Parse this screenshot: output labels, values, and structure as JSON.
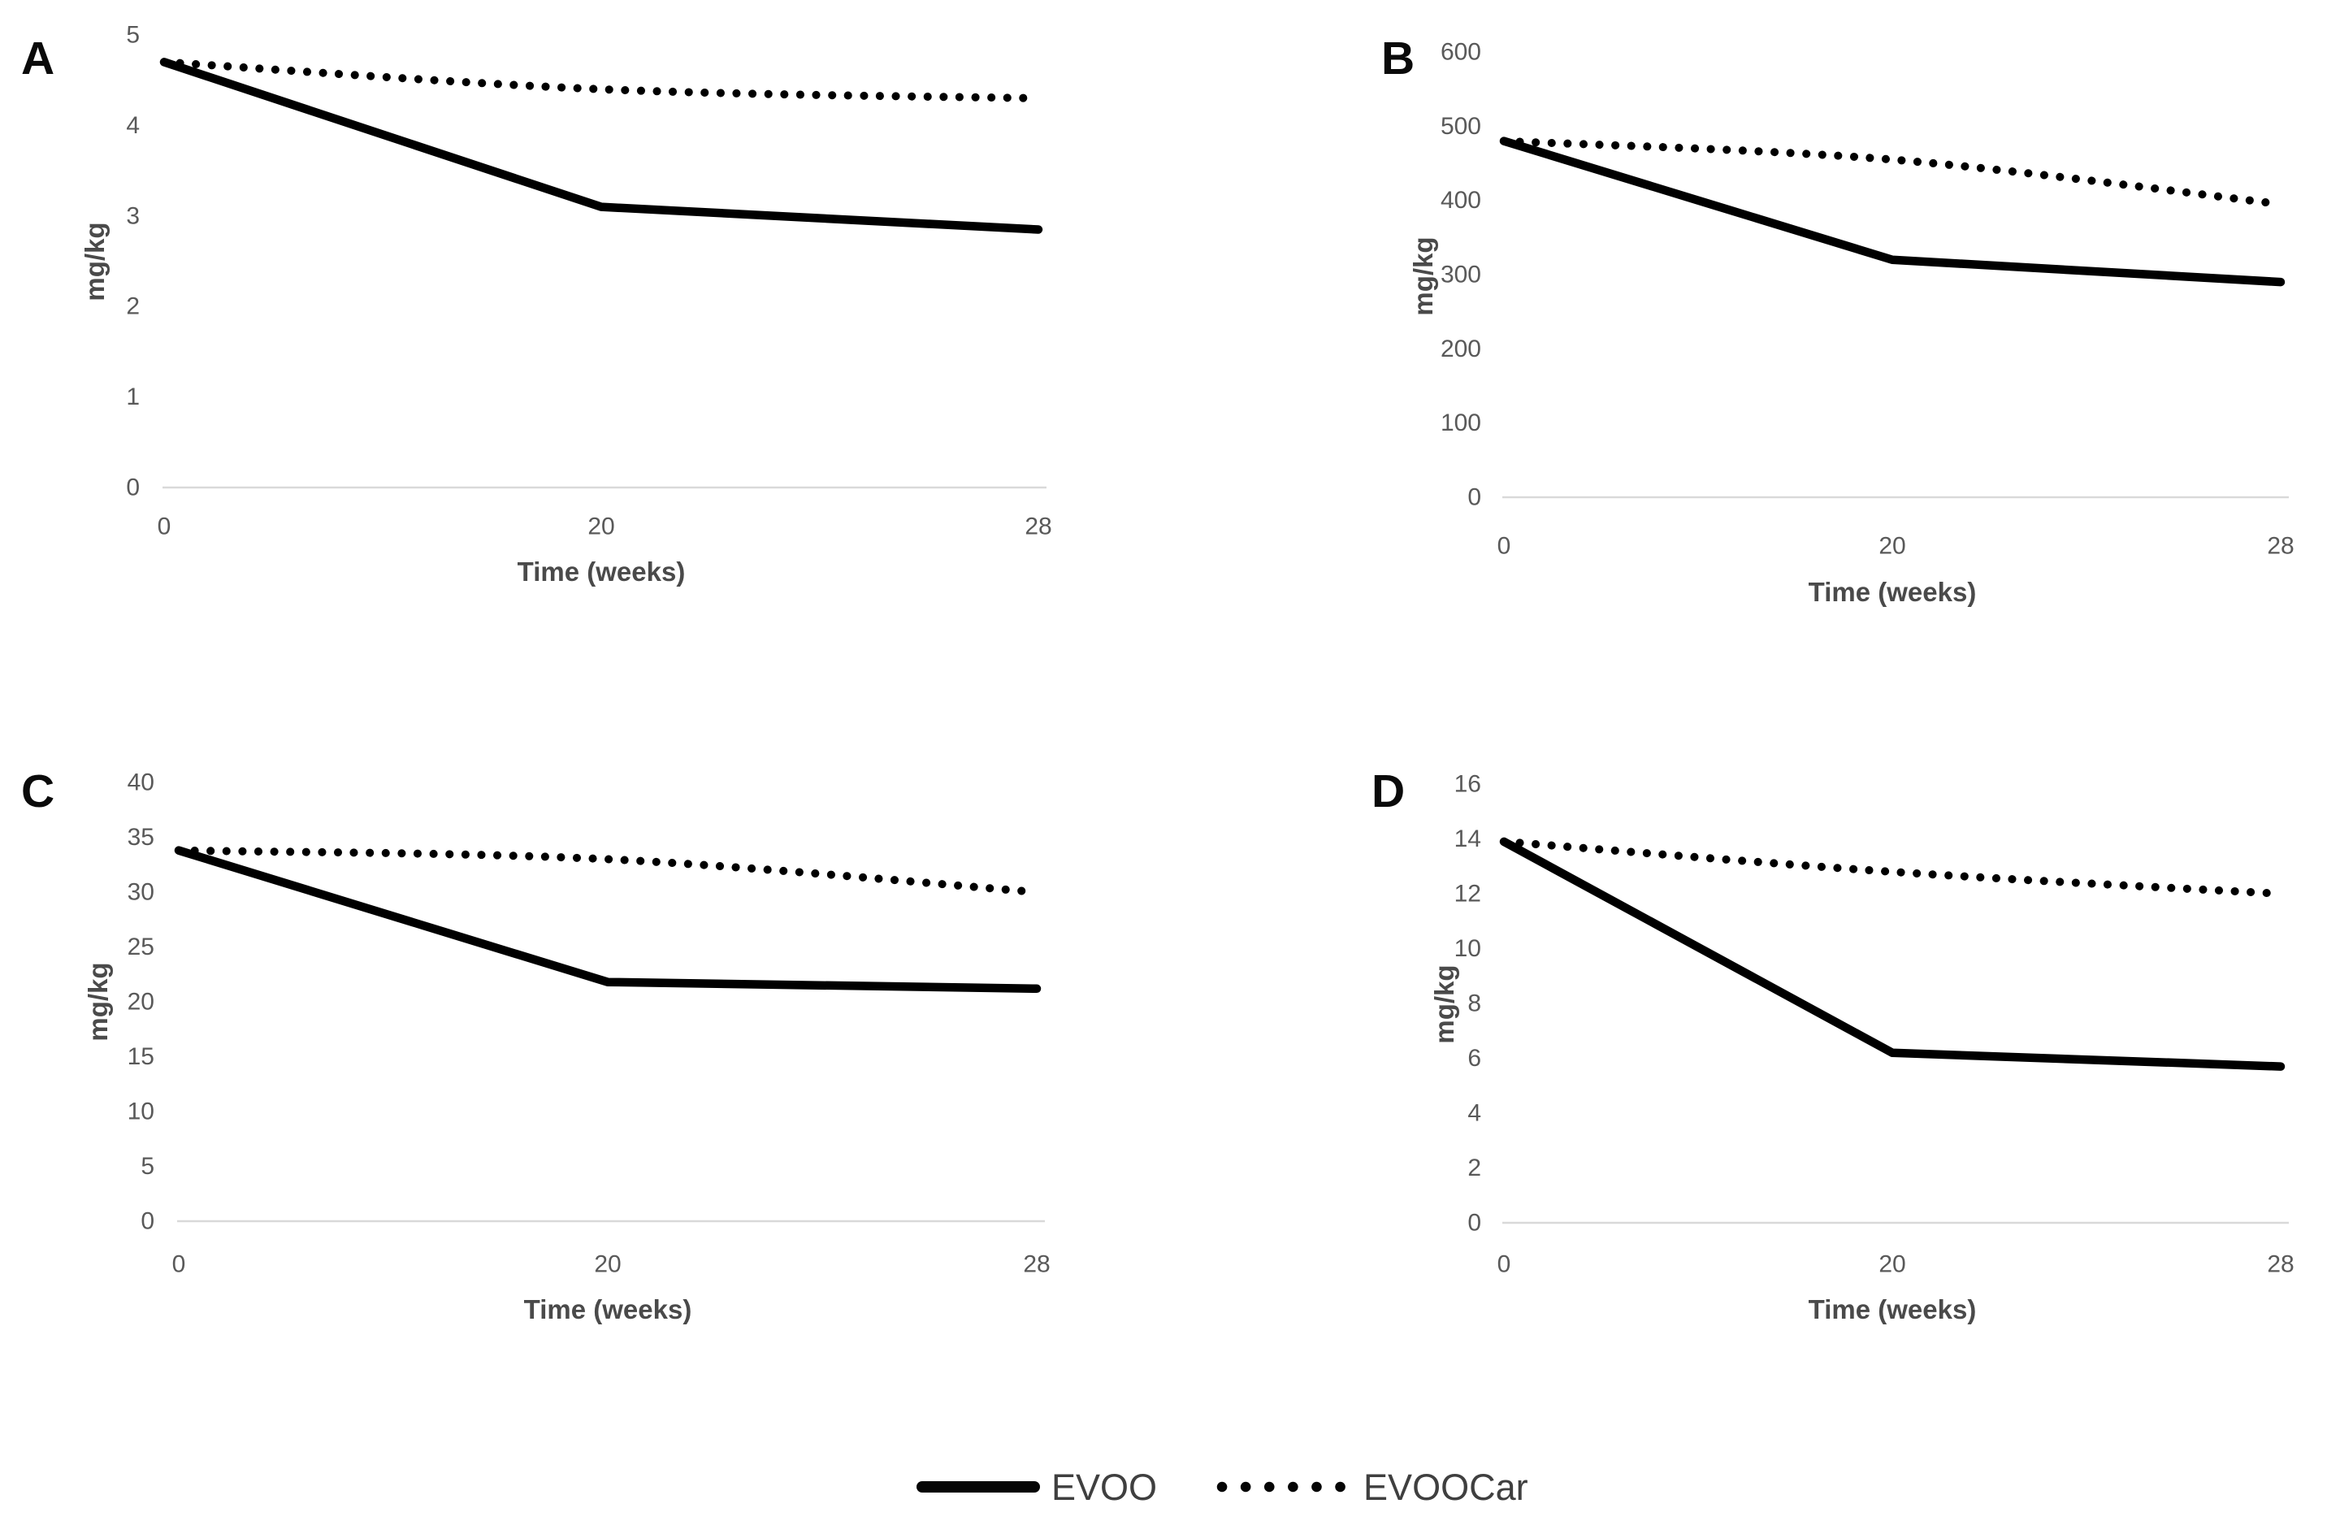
{
  "page": {
    "background": "#ffffff"
  },
  "colors": {
    "line": "#000000",
    "tick_label": "#595959",
    "axis_title": "#4a4a4a",
    "axis_line": "#d9d9d9",
    "panel_letter": "#0a0a0a",
    "legend_text": "#3f3f3f"
  },
  "legend": {
    "position": "bottom-center",
    "items": [
      {
        "label": "EVOO",
        "style": "solid",
        "swatch": "thick-solid-line"
      },
      {
        "label": "EVOOCar",
        "style": "dotted",
        "swatch": "round-dotted-line"
      }
    ]
  },
  "chart_data": [
    {
      "panel_label": "A",
      "type": "line",
      "x": [
        0,
        20,
        28
      ],
      "x_tick_labels": [
        "0",
        "20",
        "28"
      ],
      "xlabel": "Time (weeks)",
      "ylabel": "mg/kg",
      "ylim": [
        0,
        5
      ],
      "ytick_interval": 1,
      "yticks": [
        5,
        4,
        3,
        2,
        1,
        0
      ],
      "grid": false,
      "series": [
        {
          "name": "EVOO",
          "style": "solid",
          "values": [
            4.7,
            3.1,
            2.85
          ]
        },
        {
          "name": "EVOOCar",
          "style": "dotted",
          "values": [
            4.7,
            4.4,
            4.3
          ]
        }
      ]
    },
    {
      "panel_label": "B",
      "type": "line",
      "x": [
        0,
        20,
        28
      ],
      "x_tick_labels": [
        "0",
        "20",
        "28"
      ],
      "xlabel": "Time (weeks)",
      "ylabel": "mg/kg",
      "ylim": [
        0,
        600
      ],
      "ytick_interval": 100,
      "yticks": [
        600,
        500,
        400,
        300,
        200,
        100,
        0
      ],
      "grid": false,
      "series": [
        {
          "name": "EVOO",
          "style": "solid",
          "values": [
            480,
            320,
            290
          ]
        },
        {
          "name": "EVOOCar",
          "style": "dotted",
          "values": [
            480,
            455,
            395
          ]
        }
      ]
    },
    {
      "panel_label": "C",
      "type": "line",
      "x": [
        0,
        20,
        28
      ],
      "x_tick_labels": [
        "0",
        "20",
        "28"
      ],
      "xlabel": "Time (weeks)",
      "ylabel": "mg/kg",
      "ylim": [
        0,
        40
      ],
      "ytick_interval": 5,
      "yticks": [
        40,
        35,
        30,
        25,
        20,
        15,
        10,
        5,
        0
      ],
      "grid": false,
      "series": [
        {
          "name": "EVOO",
          "style": "solid",
          "values": [
            33.8,
            21.8,
            21.2
          ]
        },
        {
          "name": "EVOOCar",
          "style": "dotted",
          "values": [
            33.8,
            33,
            30
          ]
        }
      ]
    },
    {
      "panel_label": "D",
      "type": "line",
      "x": [
        0,
        20,
        28
      ],
      "x_tick_labels": [
        "0",
        "20",
        "28"
      ],
      "xlabel": "Time (weeks)",
      "ylabel": "mg/kg",
      "ylim": [
        0,
        16
      ],
      "ytick_interval": 2,
      "yticks": [
        16,
        14,
        12,
        10,
        8,
        6,
        4,
        2,
        0
      ],
      "grid": false,
      "series": [
        {
          "name": "EVOO",
          "style": "solid",
          "values": [
            13.9,
            6.2,
            5.7
          ]
        },
        {
          "name": "EVOOCar",
          "style": "dotted",
          "values": [
            13.9,
            12.8,
            12
          ]
        }
      ]
    }
  ]
}
